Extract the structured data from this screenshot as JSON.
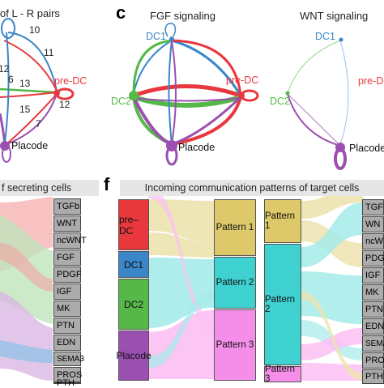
{
  "panel_c": {
    "letter": "c",
    "fgf_title": "FGF signaling",
    "wnt_title": "WNT signaling",
    "fgf_nodes": {
      "dc1": "DC1",
      "dc2": "DC2",
      "predc": "pre-DC",
      "placode": "Placode"
    },
    "wnt_nodes": {
      "dc1": "DC1",
      "dc2": "DC2",
      "predc": "pre-DC",
      "placode": "Placode"
    }
  },
  "panel_left_top": {
    "title_fragment": "of L - R pairs",
    "node_predc": "pre-DC",
    "node_placode": "Placode",
    "edge_numbers": [
      "10",
      "11",
      "12",
      "6",
      "13",
      "15",
      "7",
      "12"
    ]
  },
  "panel_left_bottom": {
    "banner": "f secreting cells",
    "signals": [
      "TGFb",
      "WNT",
      "ncWNT",
      "FGF",
      "PDGF",
      "IGF",
      "MK",
      "PTN",
      "EDN",
      "SEMA3",
      "PROS",
      "PTH"
    ]
  },
  "panel_f": {
    "letter": "f",
    "banner": "Incoming communication patterns of target cells",
    "cells": [
      "pre–DC",
      "DC1",
      "DC2",
      "Placode"
    ],
    "patterns_a": [
      "Pattern 1",
      "Pattern 2",
      "Pattern 3"
    ],
    "patterns_b": [
      "Pattern 1",
      "Pattern 2",
      "Pattern 3"
    ],
    "signals_right": [
      "TGF",
      "WN",
      "ncW",
      "PDG",
      "IGF",
      "MK",
      "PTN",
      "EDN",
      "SEMA",
      "PRO",
      "PTH"
    ]
  },
  "colors": {
    "predc": "#e8383d",
    "dc1": "#3a86c8",
    "dc2": "#55b848",
    "placode": "#9b4fb0",
    "pattern1": "#ddc96a",
    "pattern2": "#3fd1cf",
    "pattern3": "#f58ee9"
  }
}
